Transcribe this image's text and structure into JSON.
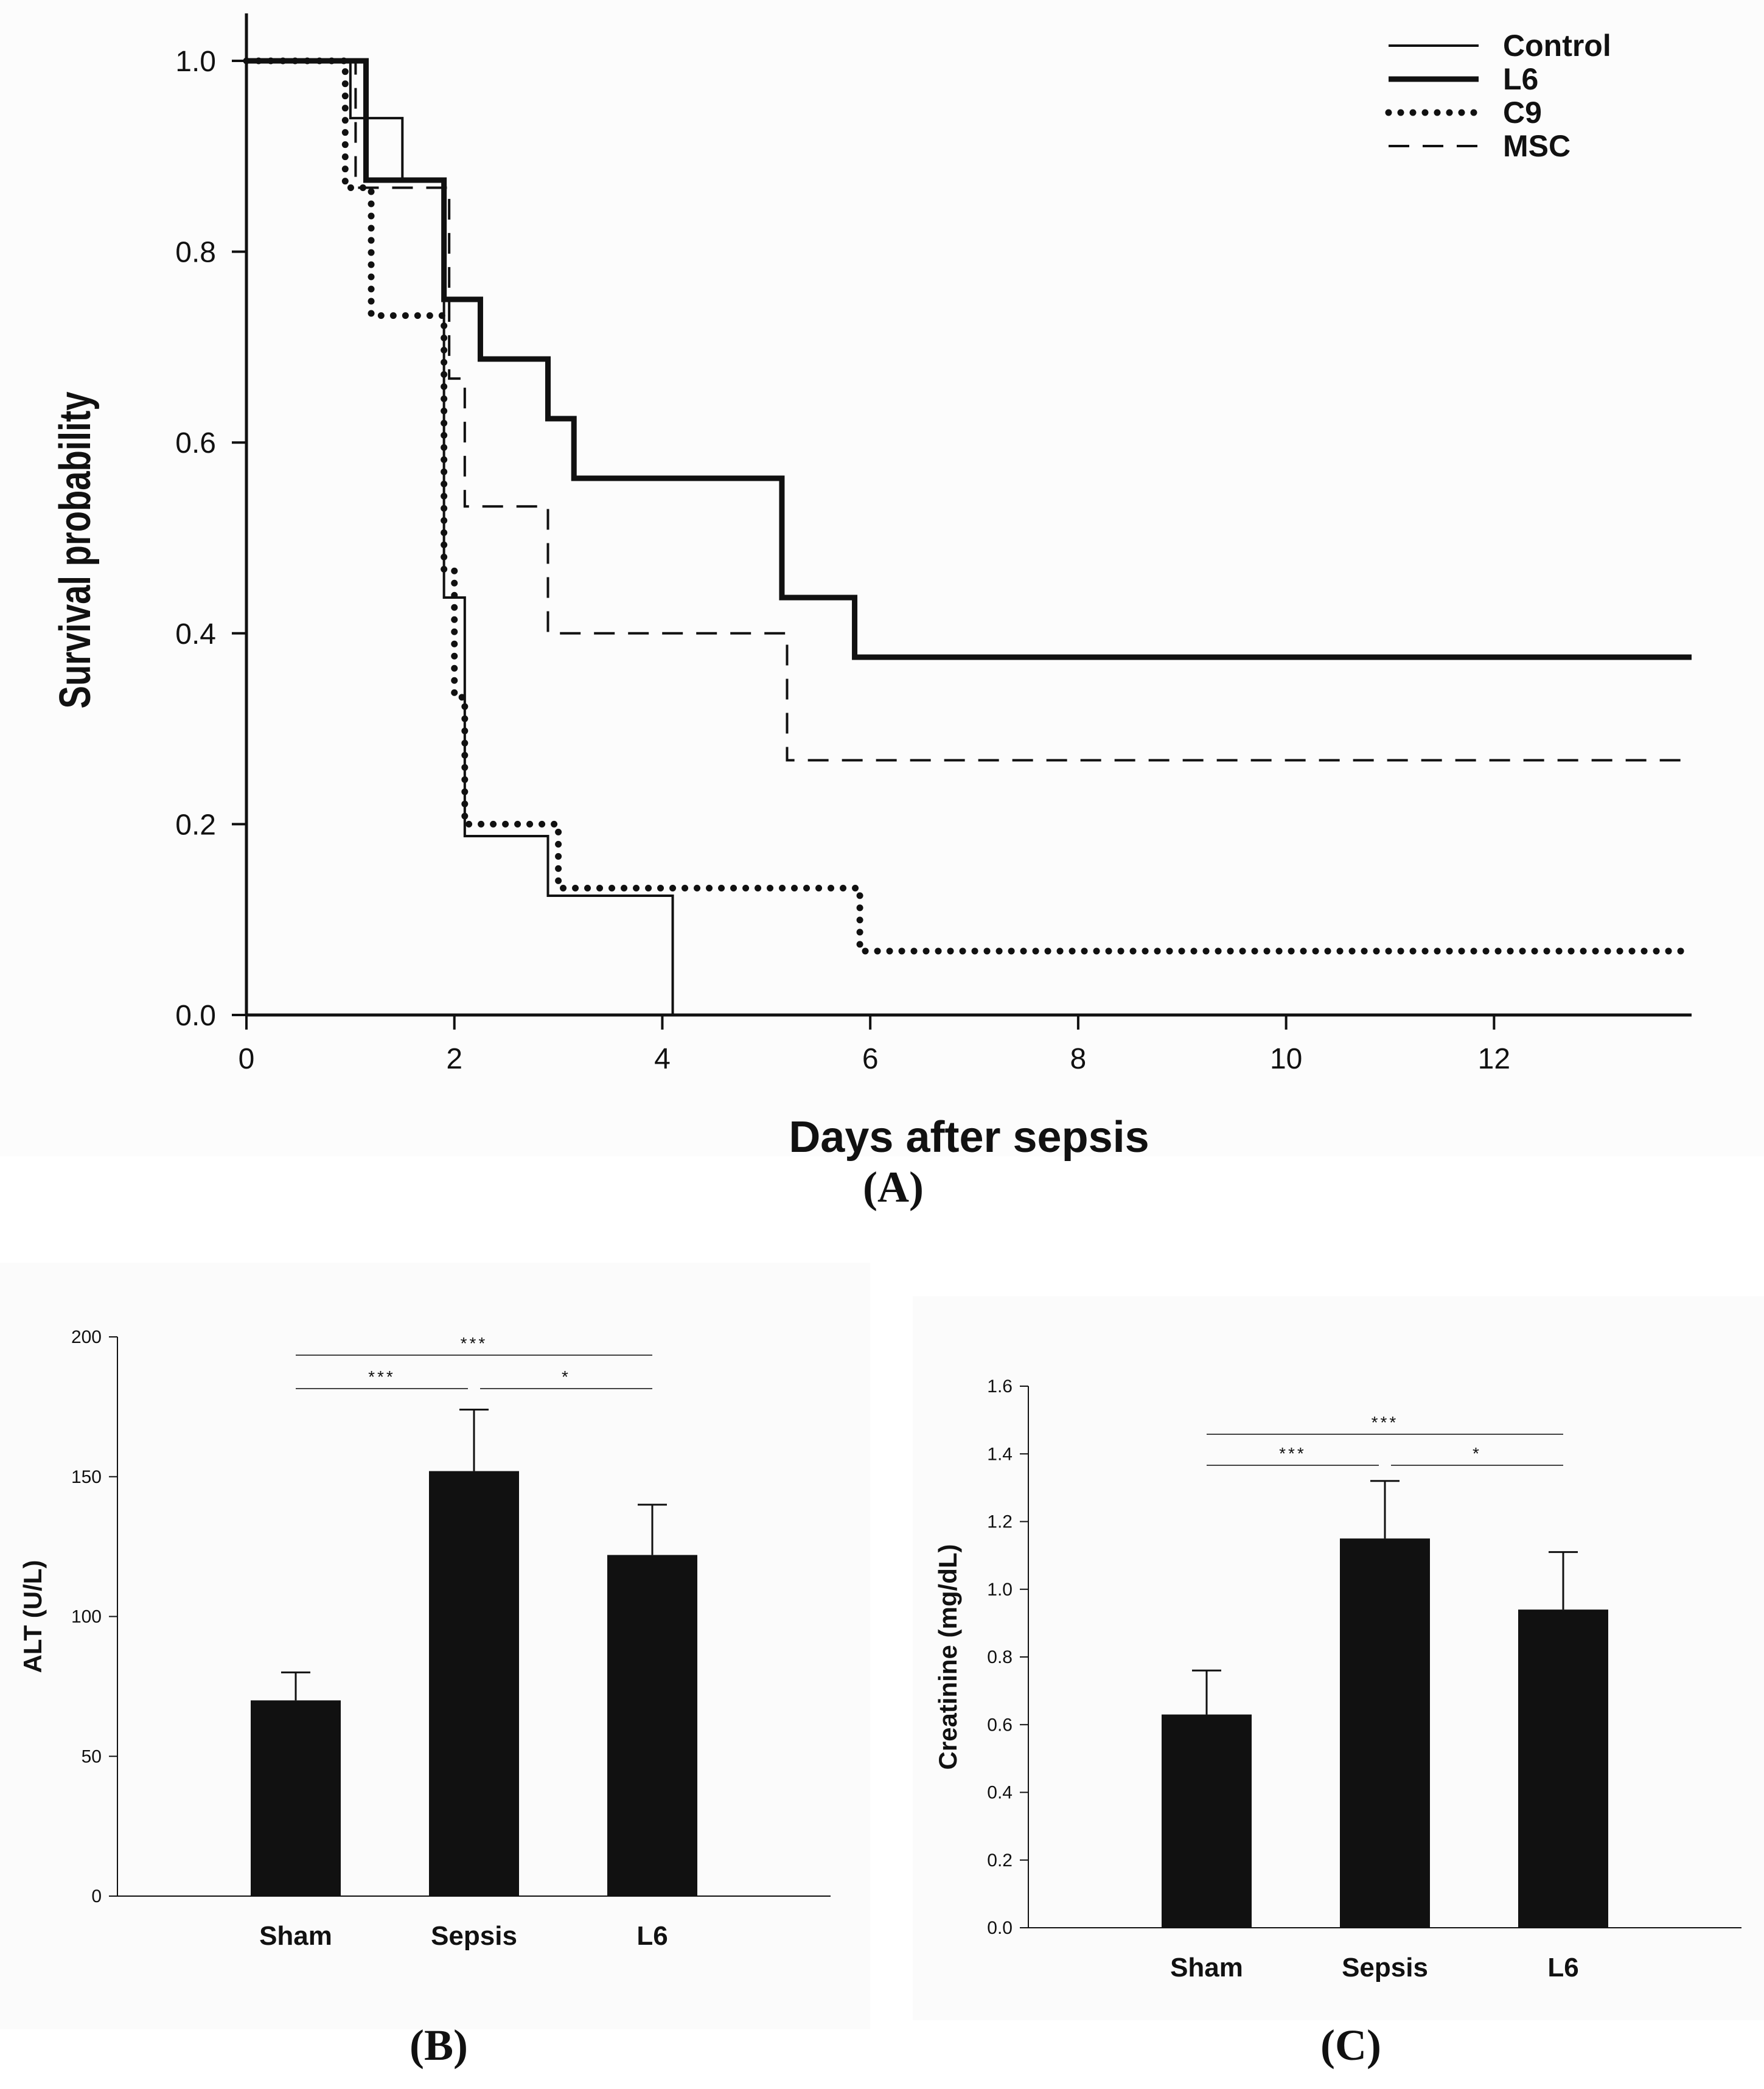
{
  "colors": {
    "ink": "#111111",
    "background": "#ffffff",
    "panel_bg": "#fcfcfc"
  },
  "chart_data": [
    {
      "id": "A",
      "type": "line",
      "subtype": "kaplan-meier step",
      "panel_label": "(A)",
      "xlabel": "Days after sepsis",
      "ylabel": "Survival probability",
      "xlim": [
        0,
        13.9
      ],
      "ylim": [
        0,
        1.0
      ],
      "xticks": [
        "0",
        "2",
        "4",
        "6",
        "8",
        "10",
        "12"
      ],
      "yticks": [
        "0.0",
        "0.2",
        "0.4",
        "0.6",
        "0.8",
        "1.0"
      ],
      "legend_position": "top-right",
      "series": [
        {
          "name": "Control",
          "style": "solid-thin",
          "x": [
            0,
            1.0,
            1.5,
            1.9,
            2.1,
            2.9,
            4.1
          ],
          "y": [
            1.0,
            0.94,
            0.875,
            0.4375,
            0.1875,
            0.125,
            0.0
          ]
        },
        {
          "name": "L6",
          "style": "solid-thick",
          "x": [
            0,
            1.15,
            1.9,
            2.25,
            2.9,
            3.15,
            5.15,
            5.85,
            13.9
          ],
          "y": [
            1.0,
            0.875,
            0.75,
            0.6875,
            0.625,
            0.5625,
            0.4375,
            0.375,
            0.375
          ]
        },
        {
          "name": "C9",
          "style": "dotted",
          "x": [
            0,
            0.95,
            1.2,
            1.9,
            2.0,
            2.1,
            3.0,
            5.9,
            13.9
          ],
          "y": [
            1.0,
            0.867,
            0.733,
            0.467,
            0.333,
            0.2,
            0.133,
            0.067,
            0.067
          ]
        },
        {
          "name": "MSC",
          "style": "dashed",
          "x": [
            0,
            1.05,
            1.95,
            2.1,
            2.9,
            5.2,
            13.9
          ],
          "y": [
            1.0,
            0.867,
            0.667,
            0.533,
            0.4,
            0.267,
            0.267
          ]
        }
      ]
    },
    {
      "id": "B",
      "type": "bar",
      "panel_label": "(B)",
      "xlabel": "",
      "ylabel": "ALT (U/L)",
      "ylim": [
        0,
        200
      ],
      "yticks": [
        "0",
        "50",
        "100",
        "150",
        "200"
      ],
      "categories": [
        "Sham",
        "Sepsis",
        "L6"
      ],
      "values": [
        70,
        152,
        122
      ],
      "errors": [
        10,
        22,
        18
      ],
      "significance": [
        {
          "from": 0,
          "to": 2,
          "label": "***",
          "level": 2
        },
        {
          "from": 0,
          "to": 1,
          "label": "***",
          "level": 1
        },
        {
          "from": 1,
          "to": 2,
          "label": "*",
          "level": 1
        }
      ]
    },
    {
      "id": "C",
      "type": "bar",
      "panel_label": "(C)",
      "xlabel": "",
      "ylabel": "Creatinine (mg/dL)",
      "ylim": [
        0,
        1.6
      ],
      "yticks": [
        "0.0",
        "0.2",
        "0.4",
        "0.6",
        "0.8",
        "1.0",
        "1.2",
        "1.4",
        "1.6"
      ],
      "categories": [
        "Sham",
        "Sepsis",
        "L6"
      ],
      "values": [
        0.63,
        1.15,
        0.94
      ],
      "errors": [
        0.13,
        0.17,
        0.17
      ],
      "significance": [
        {
          "from": 0,
          "to": 2,
          "label": "***",
          "level": 2
        },
        {
          "from": 0,
          "to": 1,
          "label": "***",
          "level": 1
        },
        {
          "from": 1,
          "to": 2,
          "label": "*",
          "level": 1
        }
      ]
    }
  ]
}
